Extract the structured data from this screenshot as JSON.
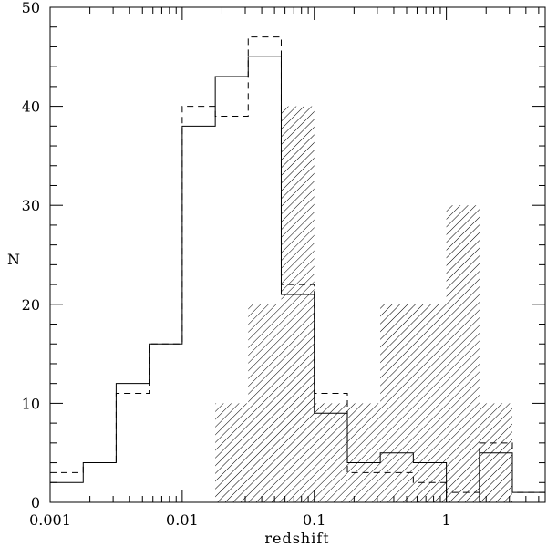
{
  "chart_data": {
    "type": "histogram",
    "title": "",
    "xlabel": "redshift",
    "ylabel": "N",
    "x_scale": "log",
    "xlim": [
      0.001,
      5.6
    ],
    "ylim": [
      0,
      50
    ],
    "grid": false,
    "legend": "none",
    "x_ticks": [
      {
        "value": 0.001,
        "label": "0.001"
      },
      {
        "value": 0.01,
        "label": "0.01"
      },
      {
        "value": 0.1,
        "label": "0.1"
      },
      {
        "value": 1,
        "label": "1"
      }
    ],
    "y_ticks": [
      {
        "value": 0,
        "label": "0"
      },
      {
        "value": 10,
        "label": "10"
      },
      {
        "value": 20,
        "label": "20"
      },
      {
        "value": 30,
        "label": "30"
      },
      {
        "value": 40,
        "label": "40"
      },
      {
        "value": 50,
        "label": "50"
      }
    ],
    "bin_edges": [
      0.001,
      0.00178,
      0.00316,
      0.00562,
      0.01,
      0.0178,
      0.0316,
      0.0562,
      0.1,
      0.178,
      0.316,
      0.562,
      1,
      1.78,
      3.16,
      5.62
    ],
    "series": [
      {
        "style": "solid",
        "values": [
          2,
          4,
          12,
          16,
          38,
          43,
          45,
          21,
          9,
          4,
          5,
          4,
          0,
          5,
          1
        ]
      },
      {
        "style": "dashed",
        "values": [
          3,
          4,
          11,
          16,
          40,
          39,
          47,
          22,
          11,
          3,
          3,
          2,
          1,
          6,
          1
        ]
      },
      {
        "style": "hatched",
        "values": [
          0,
          0,
          0,
          0,
          0,
          10,
          20,
          40,
          10,
          10,
          20,
          20,
          30,
          10,
          0
        ]
      }
    ]
  }
}
